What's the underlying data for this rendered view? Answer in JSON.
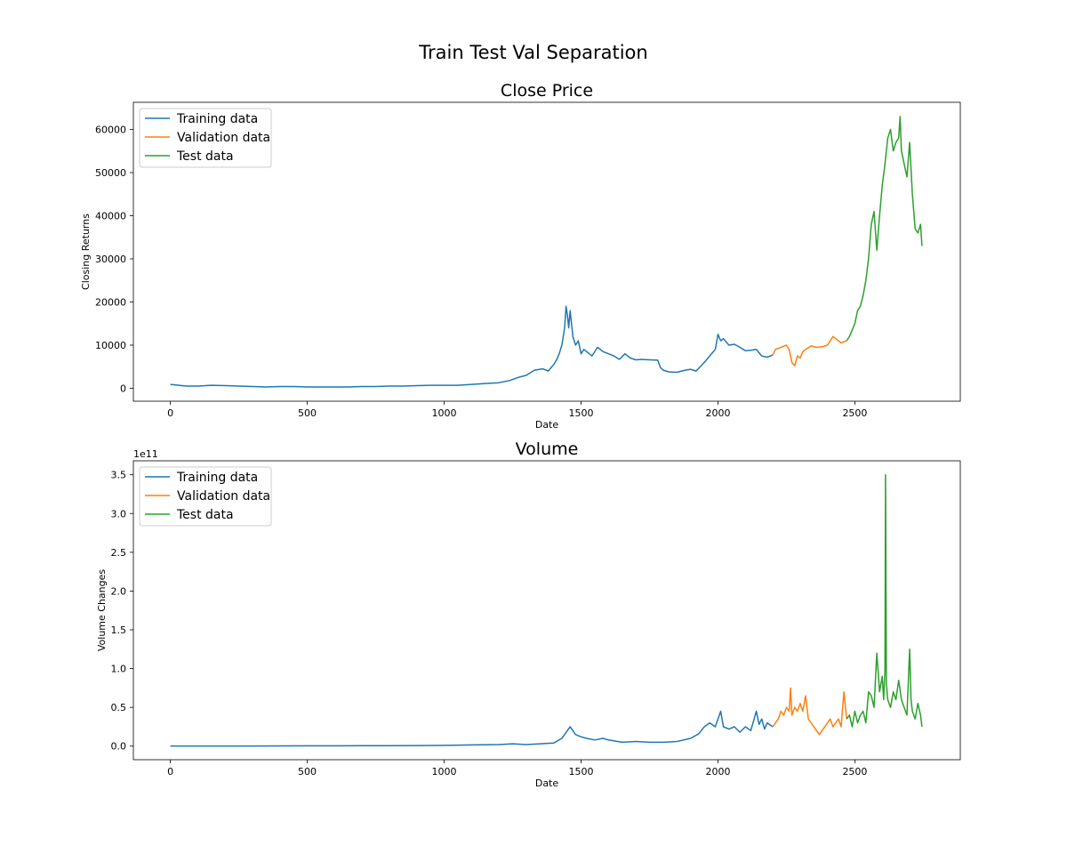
{
  "suptitle": "Train Test Val Separation",
  "colors": {
    "train": "#1f77b4",
    "val": "#ff7f0e",
    "test": "#2ca02c"
  },
  "chart_data": [
    {
      "type": "line",
      "title": "Close Price",
      "xlabel": "Date",
      "ylabel": "Closing Returns",
      "xlim": [
        -135,
        2885
      ],
      "ylim": [
        -3000,
        66300
      ],
      "xticks": [
        0,
        500,
        1000,
        1500,
        2000,
        2500
      ],
      "yticks": [
        0,
        10000,
        20000,
        30000,
        40000,
        50000,
        60000
      ],
      "ytick_labels": [
        "0",
        "10000",
        "20000",
        "30000",
        "40000",
        "50000",
        "60000"
      ],
      "offset_text": "",
      "legend": {
        "position": "upper-left",
        "entries": [
          "Training data",
          "Validation data",
          "Test data"
        ]
      },
      "series": [
        {
          "name": "Training data",
          "color": "#1f77b4",
          "x": [
            0,
            30,
            60,
            100,
            150,
            200,
            250,
            300,
            350,
            400,
            450,
            500,
            550,
            600,
            650,
            700,
            750,
            800,
            850,
            900,
            950,
            1000,
            1050,
            1100,
            1150,
            1200,
            1240,
            1270,
            1300,
            1330,
            1360,
            1380,
            1400,
            1410,
            1420,
            1430,
            1440,
            1445,
            1450,
            1455,
            1460,
            1470,
            1480,
            1490,
            1500,
            1510,
            1520,
            1540,
            1560,
            1580,
            1600,
            1620,
            1640,
            1660,
            1680,
            1700,
            1720,
            1750,
            1780,
            1790,
            1800,
            1820,
            1850,
            1880,
            1900,
            1920,
            1950,
            1970,
            1990,
            2000,
            2010,
            2020,
            2040,
            2060,
            2080,
            2100,
            2120,
            2140,
            2160,
            2180,
            2200
          ],
          "y": [
            900,
            700,
            500,
            500,
            700,
            600,
            500,
            400,
            300,
            400,
            400,
            300,
            300,
            300,
            300,
            400,
            400,
            500,
            500,
            600,
            700,
            700,
            700,
            900,
            1100,
            1300,
            1800,
            2500,
            3000,
            4200,
            4500,
            4000,
            5500,
            6500,
            8000,
            10000,
            14000,
            19000,
            17000,
            14000,
            18000,
            12000,
            10000,
            11000,
            8000,
            9000,
            8500,
            7500,
            9500,
            8500,
            8000,
            7500,
            6700,
            8000,
            7000,
            6600,
            6700,
            6600,
            6500,
            4800,
            4200,
            3800,
            3700,
            4200,
            4400,
            4000,
            6000,
            7500,
            9000,
            12500,
            11000,
            11500,
            10000,
            10200,
            9500,
            8700,
            8800,
            9000,
            7500,
            7200,
            7700
          ]
        },
        {
          "name": "Validation data",
          "color": "#ff7f0e",
          "x": [
            2200,
            2210,
            2230,
            2250,
            2260,
            2270,
            2280,
            2290,
            2300,
            2310,
            2320,
            2340,
            2360,
            2380,
            2400,
            2420,
            2430,
            2440,
            2450,
            2460,
            2470
          ],
          "y": [
            7700,
            9000,
            9500,
            10000,
            9000,
            6000,
            5200,
            7500,
            7000,
            8500,
            9000,
            9800,
            9500,
            9600,
            10000,
            12000,
            11500,
            11000,
            10500,
            10800,
            11000
          ]
        },
        {
          "name": "Test data",
          "color": "#2ca02c",
          "x": [
            2470,
            2480,
            2490,
            2500,
            2510,
            2520,
            2530,
            2540,
            2550,
            2560,
            2570,
            2580,
            2590,
            2600,
            2610,
            2620,
            2630,
            2640,
            2650,
            2660,
            2665,
            2670,
            2680,
            2690,
            2700,
            2710,
            2720,
            2730,
            2740,
            2745
          ],
          "y": [
            11000,
            12000,
            13500,
            15000,
            18000,
            19000,
            21500,
            25000,
            30000,
            38000,
            41000,
            32000,
            40000,
            47000,
            52000,
            58000,
            60000,
            55000,
            57000,
            58000,
            63000,
            55000,
            52000,
            49000,
            57000,
            45000,
            37000,
            36000,
            38000,
            33000
          ]
        }
      ]
    },
    {
      "type": "line",
      "title": "Volume",
      "xlabel": "Date",
      "ylabel": "Volume Changes",
      "xlim": [
        -135,
        2885
      ],
      "ylim": [
        -1.75,
        36.8
      ],
      "xticks": [
        0,
        500,
        1000,
        1500,
        2000,
        2500
      ],
      "yticks": [
        0,
        5,
        10,
        15,
        20,
        25,
        30,
        35
      ],
      "ytick_labels": [
        "0.0",
        "0.5",
        "1.0",
        "1.5",
        "2.0",
        "2.5",
        "3.0",
        "3.5"
      ],
      "offset_text": "1e11",
      "legend": {
        "position": "upper-left",
        "entries": [
          "Training data",
          "Validation data",
          "Test data"
        ]
      },
      "series": [
        {
          "name": "Training data",
          "color": "#1f77b4",
          "x": [
            0,
            100,
            200,
            300,
            400,
            500,
            600,
            700,
            800,
            900,
            1000,
            1100,
            1200,
            1250,
            1300,
            1350,
            1400,
            1430,
            1440,
            1450,
            1460,
            1470,
            1480,
            1500,
            1520,
            1550,
            1580,
            1600,
            1650,
            1700,
            1750,
            1800,
            1850,
            1900,
            1930,
            1950,
            1970,
            1990,
            2000,
            2010,
            2020,
            2040,
            2060,
            2080,
            2100,
            2120,
            2140,
            2150,
            2160,
            2170,
            2180,
            2200
          ],
          "y": [
            0.02,
            0.02,
            0.02,
            0.02,
            0.03,
            0.04,
            0.04,
            0.05,
            0.06,
            0.07,
            0.1,
            0.15,
            0.2,
            0.3,
            0.2,
            0.3,
            0.4,
            1.0,
            1.5,
            2.0,
            2.5,
            2.0,
            1.5,
            1.2,
            1.0,
            0.8,
            1.0,
            0.8,
            0.5,
            0.6,
            0.5,
            0.5,
            0.6,
            1.0,
            1.6,
            2.5,
            3.0,
            2.5,
            3.5,
            4.5,
            2.5,
            2.2,
            2.5,
            1.8,
            2.5,
            2.0,
            4.5,
            2.8,
            3.5,
            2.2,
            3.0,
            2.5
          ]
        },
        {
          "name": "Validation data",
          "color": "#ff7f0e",
          "x": [
            2200,
            2210,
            2220,
            2230,
            2240,
            2250,
            2260,
            2265,
            2270,
            2280,
            2290,
            2300,
            2310,
            2320,
            2330,
            2340,
            2350,
            2360,
            2370,
            2380,
            2390,
            2400,
            2410,
            2420,
            2430,
            2440,
            2450,
            2460,
            2470
          ],
          "y": [
            2.5,
            3.0,
            3.5,
            4.5,
            4.0,
            5.0,
            4.5,
            7.5,
            4.0,
            5.0,
            4.5,
            5.5,
            4.5,
            6.5,
            3.5,
            3.0,
            2.5,
            2.0,
            1.5,
            2.0,
            2.5,
            3.0,
            3.5,
            2.5,
            3.0,
            3.5,
            2.5,
            7.0,
            3.5
          ]
        },
        {
          "name": "Test data",
          "color": "#2ca02c",
          "x": [
            2470,
            2480,
            2490,
            2500,
            2510,
            2520,
            2530,
            2540,
            2550,
            2560,
            2570,
            2580,
            2590,
            2600,
            2605,
            2610,
            2612,
            2615,
            2620,
            2630,
            2640,
            2650,
            2660,
            2670,
            2680,
            2690,
            2700,
            2705,
            2710,
            2720,
            2730,
            2740,
            2745
          ],
          "y": [
            3.5,
            4.0,
            2.5,
            4.5,
            3.0,
            4.0,
            4.5,
            3.0,
            7.0,
            6.5,
            5.0,
            12.0,
            7.0,
            9.0,
            6.0,
            10.0,
            35.0,
            8.0,
            6.0,
            5.0,
            7.0,
            6.0,
            8.5,
            6.0,
            5.0,
            4.0,
            12.5,
            6.0,
            4.5,
            3.5,
            5.5,
            4.0,
            2.5
          ]
        }
      ]
    }
  ]
}
